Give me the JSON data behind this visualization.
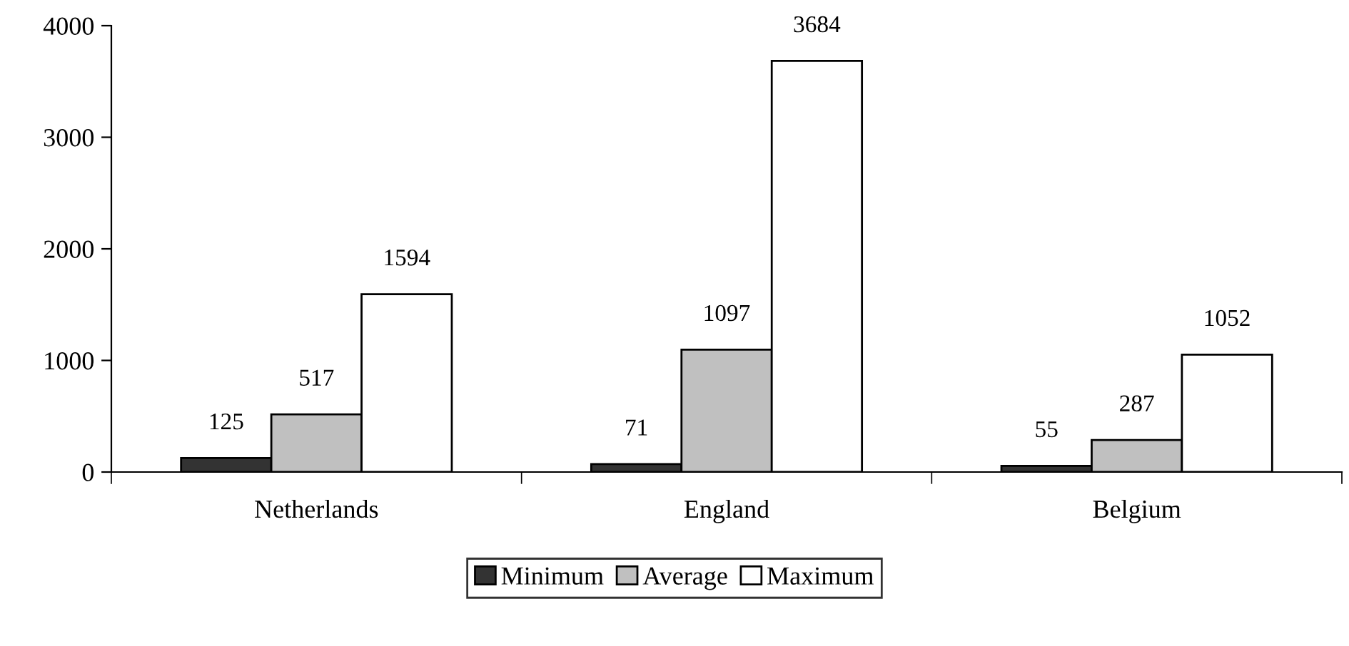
{
  "chart_data": {
    "type": "bar",
    "categories": [
      "Netherlands",
      "England",
      "Belgium"
    ],
    "series": [
      {
        "name": "Minimum",
        "color": "#333333",
        "values": [
          125,
          71,
          55
        ]
      },
      {
        "name": "Average",
        "color": "#c0c0c0",
        "values": [
          517,
          1097,
          287
        ]
      },
      {
        "name": "Maximum",
        "color": "#ffffff",
        "values": [
          1594,
          3684,
          1052
        ]
      }
    ],
    "ylim": [
      0,
      4000
    ],
    "yticks": [
      0,
      1000,
      2000,
      3000,
      4000
    ],
    "data_labels": true,
    "grid": false,
    "legend": "bottom"
  }
}
